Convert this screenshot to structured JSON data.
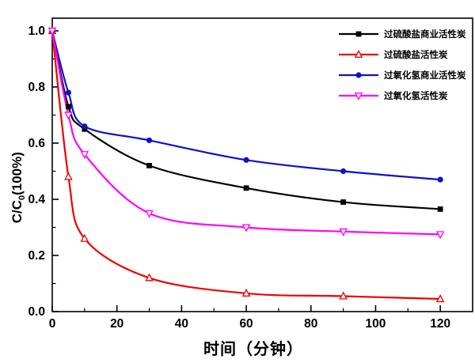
{
  "chart_data": {
    "type": "line",
    "title": "",
    "xlabel": "时间（分钟）",
    "ylabel": "C/C0(100%)",
    "ylabel_parts": {
      "prefix": "C/C",
      "sub": "0",
      "suffix": "(100%)"
    },
    "xlim": [
      0,
      130
    ],
    "ylim": [
      0,
      1.045
    ],
    "x_major_ticks": [
      0,
      20,
      40,
      60,
      80,
      100,
      120
    ],
    "x_minor_step": 10,
    "y_major_ticks": [
      0.0,
      0.2,
      0.4,
      0.6,
      0.8,
      1.0
    ],
    "y_minor_step": 0.1,
    "grid": false,
    "legend_position": "top-right",
    "x": [
      0,
      5,
      10,
      30,
      60,
      90,
      120
    ],
    "series": [
      {
        "name": "过硫酸盐商业活性炭",
        "color": "#000000",
        "marker": "square-filled",
        "values": [
          1.0,
          0.73,
          0.65,
          0.52,
          0.44,
          0.39,
          0.365
        ]
      },
      {
        "name": "过硫酸盐活性炭",
        "color": "#ee0000",
        "marker": "triangle-up-open",
        "values": [
          1.0,
          0.48,
          0.26,
          0.12,
          0.065,
          0.055,
          0.045
        ]
      },
      {
        "name": "过氧化氢商业活性炭",
        "color": "#0f0fcd",
        "marker": "circle-filled",
        "values": [
          1.0,
          0.78,
          0.66,
          0.61,
          0.54,
          0.5,
          0.47
        ]
      },
      {
        "name": "过氧化氢活性炭",
        "color": "#ff00ff",
        "marker": "triangle-down-open",
        "values": [
          1.0,
          0.7,
          0.56,
          0.35,
          0.3,
          0.285,
          0.275
        ]
      }
    ]
  }
}
